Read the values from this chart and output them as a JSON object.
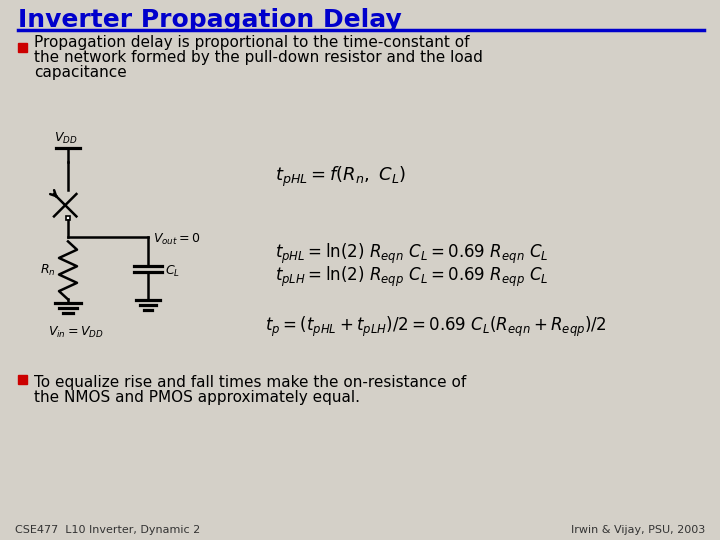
{
  "title": "Inverter Propagation Delay",
  "title_color": "#0000CC",
  "bg_color": "#D4D0C8",
  "bullet1_line1": "Propagation delay is proportional to the time-constant of",
  "bullet1_line2": "the network formed by the pull-down resistor and the load",
  "bullet1_line3": "capacitance",
  "bullet2_line1": "To equalize rise and fall times make the on-resistance of",
  "bullet2_line2": "the NMOS and PMOS approximately equal.",
  "eq1": "$t_{pHL} = f(R_n,\\ C_L)$",
  "eq2": "$t_{pHL} = \\ln(2)\\ R_{eqn}\\ C_L = 0.69\\ R_{eqn}\\ C_L$",
  "eq3": "$t_{pLH} = \\ln(2)\\ R_{eqp}\\ C_L = 0.69\\ R_{eqp}\\ C_L$",
  "eq4": "$t_p = (t_{pHL} + t_{pLH})/2 = 0.69\\ C_L(R_{eqn} + R_{eqp})/2$",
  "vout_label": "$V_{out} = 0$",
  "vin_label": "$V_{in} = V_{DD}$",
  "vdd_label": "$V_{DD}$",
  "rn_label": "$R_n$",
  "cl_label": "$C_L$",
  "footer_left": "CSE477  L10 Inverter, Dynamic 2",
  "footer_right": "Irwin & Vijay, PSU, 2003",
  "text_color": "#000000",
  "bullet_marker_color": "#CC0000",
  "circuit_color": "#000000"
}
